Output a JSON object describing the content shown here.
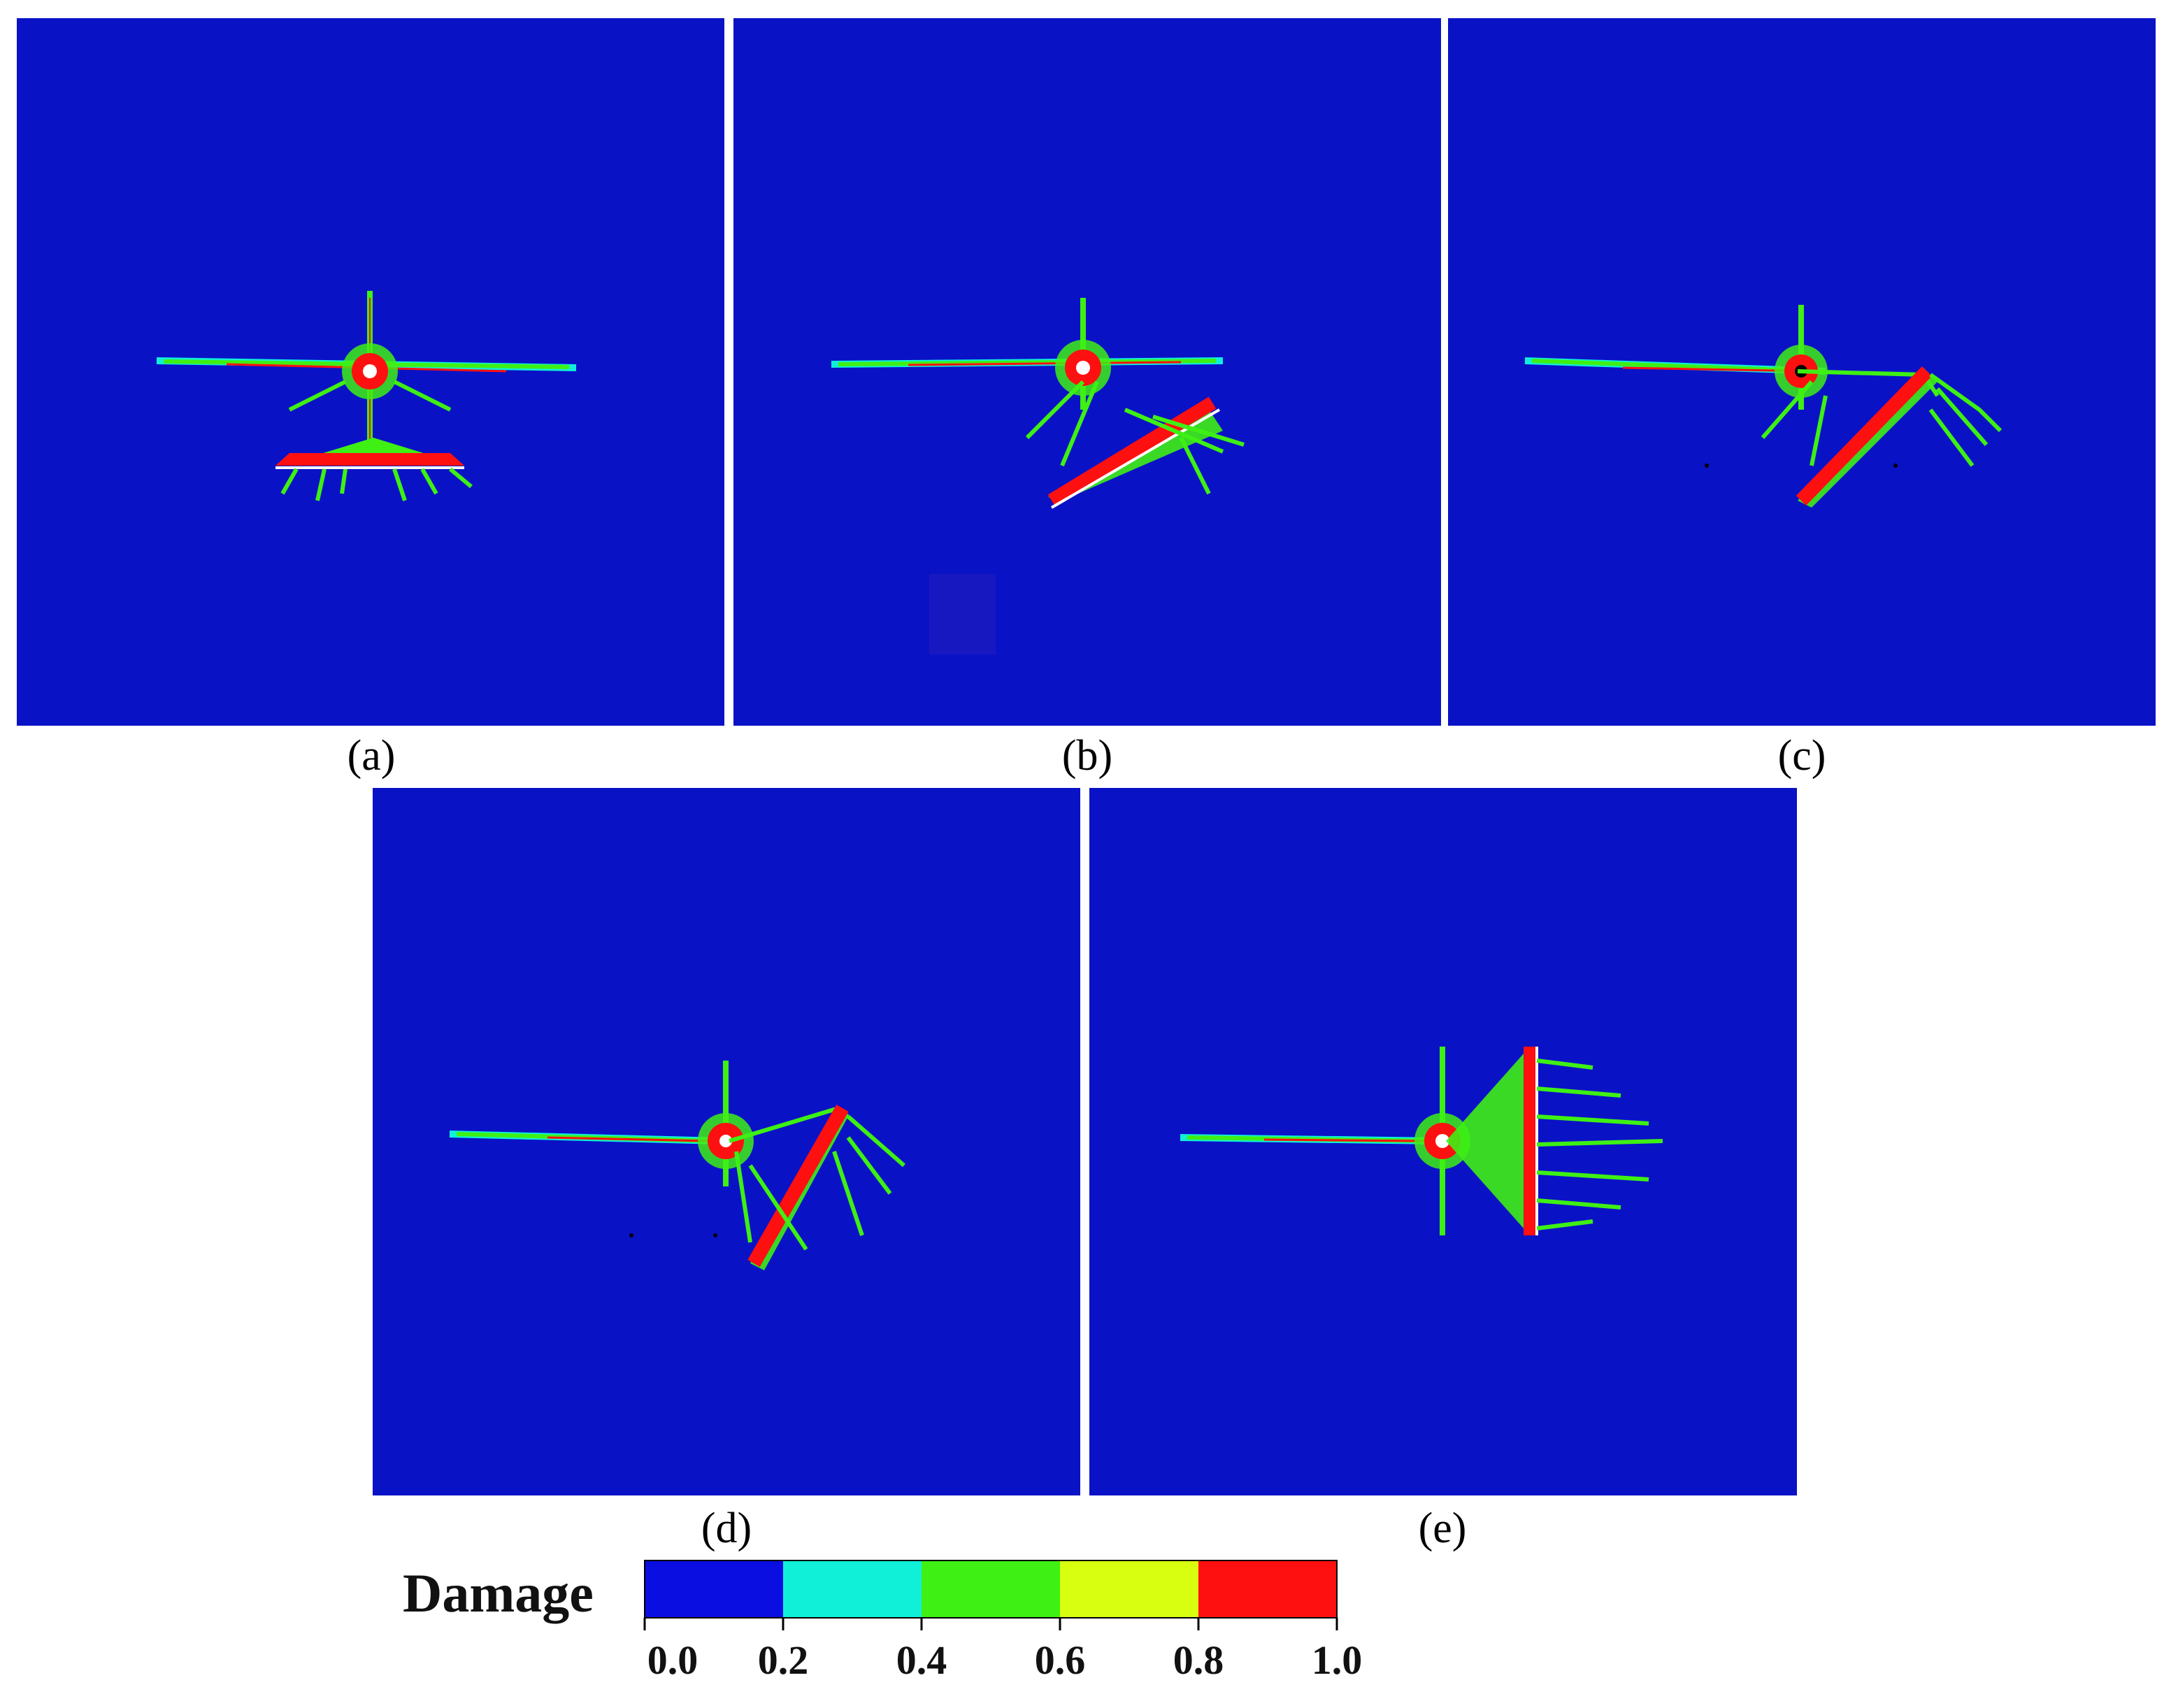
{
  "panels": [
    {
      "id": "a",
      "caption": "(a)"
    },
    {
      "id": "b",
      "caption": "(b)"
    },
    {
      "id": "c",
      "caption": "(c)"
    },
    {
      "id": "d",
      "caption": "(d)"
    },
    {
      "id": "e",
      "caption": "(e)"
    }
  ],
  "colors": {
    "background": "#0a12c6",
    "cyan": "#10f0d8",
    "green": "#3ef014",
    "yellow": "#d8ff10",
    "red": "#ff1010"
  },
  "colorbar": {
    "title": "Damage",
    "ticks": [
      "0.0",
      "0.2",
      "0.4",
      "0.6",
      "0.8",
      "1.0"
    ],
    "colors": [
      "#0a0ee0",
      "#10f0d8",
      "#3ef014",
      "#d8ff10",
      "#ff1010"
    ]
  }
}
